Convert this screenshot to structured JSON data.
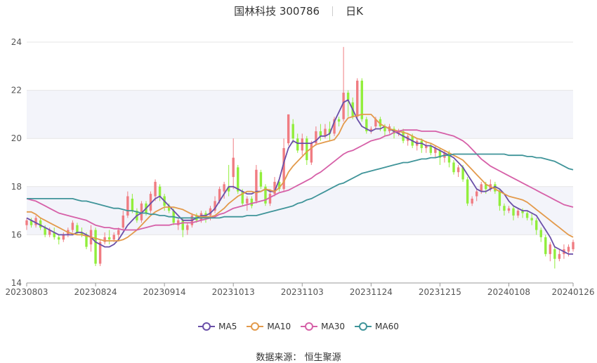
{
  "header": {
    "title": "国林科技 300786",
    "period": "日K"
  },
  "footer": {
    "source_label": "数据来源：",
    "source_name": "恒生聚源"
  },
  "colors": {
    "up": "#f07c82",
    "down": "#91ee3b",
    "MA5": "#6a4fa8",
    "MA10": "#e39a4b",
    "MA30": "#d660a8",
    "MA60": "#3f9499",
    "band": "#f3f4fa",
    "grid": "#e6e6e6"
  },
  "legend": [
    {
      "key": "MA5",
      "label": "MA5"
    },
    {
      "key": "MA10",
      "label": "MA10"
    },
    {
      "key": "MA30",
      "label": "MA30"
    },
    {
      "key": "MA60",
      "label": "MA60"
    }
  ],
  "chart_data": {
    "type": "candlestick",
    "ylim": [
      14,
      24
    ],
    "yticks": [
      "14",
      "16",
      "18",
      "20",
      "22",
      "24"
    ],
    "x_ticks": [
      {
        "i": 0,
        "label": "20230803"
      },
      {
        "i": 15,
        "label": "20230824"
      },
      {
        "i": 30,
        "label": "20230914"
      },
      {
        "i": 45,
        "label": "20231013"
      },
      {
        "i": 60,
        "label": "20231103"
      },
      {
        "i": 75,
        "label": "20231124"
      },
      {
        "i": 90,
        "label": "20231215"
      },
      {
        "i": 105,
        "label": "20240108"
      },
      {
        "i": 119,
        "label": "20240126"
      }
    ],
    "grid": true,
    "legend_position": "bottom",
    "candles": [
      [
        16.4,
        16.6,
        16.2,
        16.7
      ],
      [
        16.6,
        16.4,
        16.3,
        16.7
      ],
      [
        16.4,
        16.7,
        16.3,
        16.8
      ],
      [
        16.6,
        16.3,
        16.2,
        16.7
      ],
      [
        16.3,
        16.0,
        15.9,
        16.4
      ],
      [
        16.0,
        16.2,
        15.9,
        16.3
      ],
      [
        16.1,
        15.9,
        15.8,
        16.3
      ],
      [
        15.9,
        15.8,
        15.6,
        16.0
      ],
      [
        15.8,
        16.0,
        15.7,
        16.1
      ],
      [
        16.0,
        16.2,
        15.9,
        16.3
      ],
      [
        16.2,
        16.5,
        16.1,
        16.6
      ],
      [
        16.4,
        16.1,
        16.0,
        16.5
      ],
      [
        16.1,
        16.0,
        15.9,
        16.3
      ],
      [
        16.0,
        15.5,
        15.4,
        16.1
      ],
      [
        15.6,
        16.2,
        15.3,
        16.4
      ],
      [
        16.2,
        14.8,
        14.7,
        16.3
      ],
      [
        14.8,
        15.7,
        14.7,
        15.8
      ],
      [
        15.7,
        15.9,
        15.6,
        16.1
      ],
      [
        15.9,
        15.8,
        15.6,
        16.2
      ],
      [
        15.8,
        16.0,
        15.7,
        16.1
      ],
      [
        16.0,
        16.2,
        15.8,
        16.3
      ],
      [
        16.3,
        16.8,
        16.2,
        17.0
      ],
      [
        16.8,
        17.6,
        16.7,
        17.8
      ],
      [
        17.5,
        17.0,
        16.9,
        17.7
      ],
      [
        17.0,
        16.6,
        16.5,
        17.1
      ],
      [
        16.6,
        17.3,
        16.5,
        17.4
      ],
      [
        17.3,
        16.9,
        16.8,
        17.4
      ],
      [
        17.0,
        17.7,
        16.9,
        17.8
      ],
      [
        17.6,
        18.2,
        17.4,
        18.3
      ],
      [
        18.0,
        17.6,
        17.4,
        18.1
      ],
      [
        17.6,
        17.2,
        17.0,
        17.7
      ],
      [
        17.2,
        17.0,
        16.9,
        17.3
      ],
      [
        17.0,
        16.5,
        16.4,
        17.1
      ],
      [
        16.4,
        16.6,
        16.2,
        16.7
      ],
      [
        16.6,
        16.2,
        15.9,
        16.7
      ],
      [
        16.2,
        16.4,
        16.0,
        16.5
      ],
      [
        16.4,
        16.8,
        16.3,
        16.9
      ],
      [
        16.8,
        16.6,
        16.5,
        16.9
      ],
      [
        16.6,
        16.9,
        16.5,
        17.0
      ],
      [
        16.9,
        16.7,
        16.5,
        17.0
      ],
      [
        16.8,
        17.1,
        16.6,
        17.2
      ],
      [
        17.0,
        17.4,
        16.9,
        17.6
      ],
      [
        17.4,
        17.9,
        17.3,
        18.0
      ],
      [
        17.8,
        18.1,
        17.5,
        18.2
      ],
      [
        18.0,
        17.8,
        17.6,
        18.9
      ],
      [
        18.4,
        19.2,
        17.9,
        20.0
      ],
      [
        18.8,
        17.8,
        17.7,
        18.9
      ],
      [
        17.8,
        17.3,
        17.2,
        17.9
      ],
      [
        17.3,
        17.5,
        17.0,
        17.6
      ],
      [
        17.5,
        17.2,
        17.1,
        17.6
      ],
      [
        17.4,
        18.7,
        17.3,
        18.9
      ],
      [
        18.6,
        18.0,
        17.9,
        18.7
      ],
      [
        18.0,
        17.3,
        17.2,
        18.1
      ],
      [
        17.3,
        17.7,
        17.2,
        17.9
      ],
      [
        17.7,
        18.2,
        17.6,
        18.4
      ],
      [
        18.2,
        17.9,
        17.8,
        18.3
      ],
      [
        17.9,
        19.6,
        17.8,
        20.0
      ],
      [
        19.8,
        21.0,
        19.7,
        21.0
      ],
      [
        20.6,
        20.0,
        19.8,
        20.8
      ],
      [
        20.0,
        19.5,
        19.4,
        20.2
      ],
      [
        19.5,
        20.0,
        19.3,
        20.2
      ],
      [
        20.0,
        19.1,
        18.9,
        20.1
      ],
      [
        19.0,
        19.8,
        18.9,
        19.9
      ],
      [
        19.8,
        20.3,
        19.7,
        20.5
      ],
      [
        20.3,
        20.1,
        19.9,
        20.6
      ],
      [
        20.1,
        20.4,
        20.0,
        20.6
      ],
      [
        20.4,
        20.2,
        19.9,
        20.7
      ],
      [
        20.2,
        20.8,
        20.1,
        20.9
      ],
      [
        20.8,
        20.7,
        20.5,
        20.9
      ],
      [
        20.8,
        21.9,
        20.7,
        23.8
      ],
      [
        21.9,
        21.6,
        20.9,
        22.0
      ],
      [
        21.5,
        20.9,
        20.8,
        21.7
      ],
      [
        20.9,
        22.4,
        20.8,
        22.5
      ],
      [
        22.4,
        20.8,
        20.7,
        22.5
      ],
      [
        20.8,
        20.3,
        20.2,
        20.9
      ],
      [
        20.3,
        20.4,
        20.2,
        20.5
      ],
      [
        20.5,
        20.8,
        20.4,
        20.9
      ],
      [
        20.8,
        20.5,
        20.3,
        20.9
      ],
      [
        20.5,
        20.3,
        20.1,
        20.6
      ],
      [
        20.3,
        20.5,
        20.2,
        20.6
      ],
      [
        20.4,
        20.2,
        20.0,
        20.5
      ],
      [
        20.2,
        20.3,
        20.1,
        20.4
      ],
      [
        20.3,
        19.9,
        19.8,
        20.4
      ],
      [
        19.9,
        20.1,
        19.7,
        20.2
      ],
      [
        20.1,
        19.7,
        19.6,
        20.2
      ],
      [
        19.7,
        19.9,
        19.5,
        20.0
      ],
      [
        19.9,
        19.6,
        19.4,
        20.0
      ],
      [
        19.6,
        19.7,
        19.4,
        19.9
      ],
      [
        19.7,
        19.4,
        19.3,
        19.8
      ],
      [
        19.4,
        19.6,
        19.2,
        19.7
      ],
      [
        19.5,
        19.2,
        18.9,
        19.6
      ],
      [
        19.2,
        19.4,
        19.0,
        19.5
      ],
      [
        19.4,
        19.0,
        18.8,
        19.5
      ],
      [
        19.0,
        18.6,
        18.5,
        19.1
      ],
      [
        18.6,
        18.8,
        18.4,
        18.9
      ],
      [
        18.8,
        18.3,
        18.2,
        18.9
      ],
      [
        18.3,
        17.3,
        17.2,
        18.4
      ],
      [
        17.3,
        17.5,
        17.2,
        17.6
      ],
      [
        17.6,
        17.8,
        17.4,
        17.9
      ],
      [
        17.8,
        18.1,
        17.7,
        18.2
      ],
      [
        18.1,
        17.9,
        17.7,
        18.2
      ],
      [
        17.9,
        18.1,
        17.8,
        18.3
      ],
      [
        18.1,
        17.8,
        17.7,
        18.2
      ],
      [
        17.8,
        17.2,
        17.0,
        17.9
      ],
      [
        17.2,
        17.0,
        16.8,
        17.3
      ],
      [
        17.0,
        17.1,
        16.9,
        17.2
      ],
      [
        17.1,
        16.8,
        16.6,
        17.2
      ],
      [
        16.8,
        17.0,
        16.7,
        17.1
      ],
      [
        17.0,
        16.9,
        16.7,
        17.1
      ],
      [
        16.9,
        16.7,
        16.6,
        17.0
      ],
      [
        16.7,
        16.6,
        16.4,
        16.9
      ],
      [
        16.6,
        16.2,
        16.0,
        16.7
      ],
      [
        16.2,
        15.9,
        15.7,
        16.3
      ],
      [
        15.9,
        15.2,
        15.1,
        16.0
      ],
      [
        15.2,
        15.6,
        14.9,
        15.7
      ],
      [
        15.4,
        15.0,
        14.6,
        15.5
      ],
      [
        15.0,
        15.2,
        14.9,
        15.4
      ],
      [
        15.2,
        15.4,
        15.0,
        15.6
      ],
      [
        15.3,
        15.5,
        15.1,
        15.6
      ],
      [
        15.4,
        15.7,
        15.3,
        15.8
      ]
    ],
    "series": [
      {
        "name": "MA5",
        "values": [
          16.7,
          16.6,
          16.5,
          16.4,
          16.3,
          16.2,
          16.1,
          16.0,
          16.0,
          16.0,
          16.0,
          16.1,
          16.1,
          16.0,
          15.9,
          15.7,
          15.6,
          15.5,
          15.5,
          15.6,
          15.8,
          16.1,
          16.4,
          16.6,
          16.8,
          16.9,
          17.1,
          17.3,
          17.5,
          17.6,
          17.4,
          17.2,
          17.0,
          16.8,
          16.6,
          16.6,
          16.6,
          16.7,
          16.8,
          16.8,
          16.9,
          17.1,
          17.4,
          17.7,
          18.0,
          18.0,
          17.9,
          17.8,
          17.7,
          17.7,
          17.8,
          17.8,
          17.9,
          17.8,
          17.8,
          18.3,
          19.0,
          19.6,
          19.9,
          19.8,
          19.8,
          19.8,
          19.8,
          19.9,
          20.1,
          20.1,
          20.2,
          20.7,
          21.1,
          21.5,
          21.6,
          21.2,
          20.8,
          20.5,
          20.4,
          20.3,
          20.4,
          20.4,
          20.5,
          20.4,
          20.3,
          20.2,
          20.1,
          20.0,
          19.9,
          19.8,
          19.8,
          19.7,
          19.7,
          19.6,
          19.5,
          19.4,
          19.3,
          19.2,
          19.0,
          18.8,
          18.5,
          18.2,
          17.9,
          17.8,
          17.8,
          17.9,
          18.0,
          17.9,
          17.7,
          17.4,
          17.2,
          17.1,
          17.0,
          17.0,
          16.9,
          16.8,
          16.5,
          16.2,
          15.9,
          15.5,
          15.4,
          15.3,
          15.2,
          15.2
        ]
      },
      {
        "name": "MA10",
        "values": [
          16.95,
          16.95,
          16.85,
          16.7,
          16.6,
          16.5,
          16.4,
          16.3,
          16.2,
          16.1,
          16.05,
          16.0,
          16.0,
          15.95,
          15.9,
          15.85,
          15.8,
          15.75,
          15.75,
          15.75,
          15.75,
          15.8,
          15.9,
          16.05,
          16.2,
          16.4,
          16.6,
          16.8,
          16.95,
          17.05,
          17.15,
          17.15,
          17.15,
          17.1,
          17.05,
          16.95,
          16.85,
          16.8,
          16.75,
          16.75,
          16.75,
          16.8,
          16.95,
          17.1,
          17.3,
          17.45,
          17.6,
          17.7,
          17.8,
          17.8,
          17.75,
          17.8,
          17.9,
          17.85,
          17.8,
          17.95,
          18.2,
          18.6,
          18.85,
          19.05,
          19.25,
          19.45,
          19.6,
          19.75,
          19.8,
          19.85,
          19.9,
          19.95,
          20.2,
          20.6,
          20.85,
          20.9,
          20.95,
          21.0,
          21.0,
          21.0,
          20.8,
          20.6,
          20.5,
          20.4,
          20.35,
          20.3,
          20.25,
          20.2,
          20.1,
          20.0,
          19.95,
          19.85,
          19.8,
          19.7,
          19.6,
          19.5,
          19.4,
          19.3,
          19.2,
          19.1,
          18.9,
          18.7,
          18.5,
          18.3,
          18.1,
          18.0,
          17.9,
          17.8,
          17.7,
          17.6,
          17.55,
          17.5,
          17.45,
          17.35,
          17.2,
          17.05,
          16.9,
          16.75,
          16.6,
          16.45,
          16.3,
          16.15,
          16.0,
          15.9
        ]
      },
      {
        "name": "MA30",
        "values": [
          17.5,
          17.45,
          17.4,
          17.3,
          17.2,
          17.1,
          17.0,
          16.9,
          16.85,
          16.8,
          16.75,
          16.7,
          16.65,
          16.6,
          16.5,
          16.4,
          16.35,
          16.3,
          16.3,
          16.25,
          16.25,
          16.2,
          16.2,
          16.2,
          16.2,
          16.25,
          16.3,
          16.35,
          16.4,
          16.4,
          16.4,
          16.4,
          16.45,
          16.45,
          16.5,
          16.5,
          16.5,
          16.55,
          16.6,
          16.65,
          16.7,
          16.75,
          16.85,
          16.9,
          17.0,
          17.1,
          17.15,
          17.2,
          17.25,
          17.3,
          17.35,
          17.4,
          17.45,
          17.55,
          17.65,
          17.75,
          17.8,
          17.85,
          17.95,
          18.05,
          18.15,
          18.25,
          18.35,
          18.5,
          18.6,
          18.75,
          18.9,
          19.05,
          19.2,
          19.35,
          19.45,
          19.5,
          19.6,
          19.7,
          19.8,
          19.9,
          19.95,
          20.0,
          20.1,
          20.15,
          20.25,
          20.3,
          20.35,
          20.35,
          20.35,
          20.35,
          20.3,
          20.3,
          20.3,
          20.3,
          20.25,
          20.2,
          20.15,
          20.1,
          20.0,
          19.9,
          19.75,
          19.55,
          19.35,
          19.15,
          19.0,
          18.85,
          18.75,
          18.65,
          18.55,
          18.45,
          18.35,
          18.25,
          18.15,
          18.05,
          17.95,
          17.85,
          17.75,
          17.65,
          17.55,
          17.45,
          17.35,
          17.25,
          17.2,
          17.15
        ]
      },
      {
        "name": "MA60",
        "values": [
          17.5,
          17.5,
          17.5,
          17.5,
          17.5,
          17.5,
          17.5,
          17.5,
          17.5,
          17.5,
          17.5,
          17.45,
          17.4,
          17.4,
          17.35,
          17.3,
          17.25,
          17.2,
          17.15,
          17.1,
          17.1,
          17.05,
          17.0,
          17.0,
          16.95,
          16.9,
          16.9,
          16.85,
          16.85,
          16.8,
          16.8,
          16.75,
          16.75,
          16.7,
          16.7,
          16.7,
          16.7,
          16.7,
          16.7,
          16.7,
          16.7,
          16.7,
          16.7,
          16.75,
          16.75,
          16.75,
          16.75,
          16.75,
          16.8,
          16.8,
          16.8,
          16.85,
          16.9,
          16.95,
          17.0,
          17.05,
          17.1,
          17.15,
          17.2,
          17.3,
          17.35,
          17.45,
          17.5,
          17.6,
          17.7,
          17.8,
          17.9,
          18.0,
          18.1,
          18.15,
          18.25,
          18.35,
          18.45,
          18.55,
          18.6,
          18.65,
          18.7,
          18.75,
          18.8,
          18.85,
          18.9,
          18.95,
          19.0,
          19.0,
          19.05,
          19.1,
          19.15,
          19.15,
          19.2,
          19.2,
          19.25,
          19.3,
          19.3,
          19.35,
          19.35,
          19.35,
          19.35,
          19.35,
          19.35,
          19.35,
          19.35,
          19.35,
          19.35,
          19.35,
          19.35,
          19.3,
          19.3,
          19.3,
          19.3,
          19.25,
          19.25,
          19.2,
          19.2,
          19.15,
          19.1,
          19.05,
          18.95,
          18.85,
          18.75,
          18.7
        ]
      }
    ]
  }
}
